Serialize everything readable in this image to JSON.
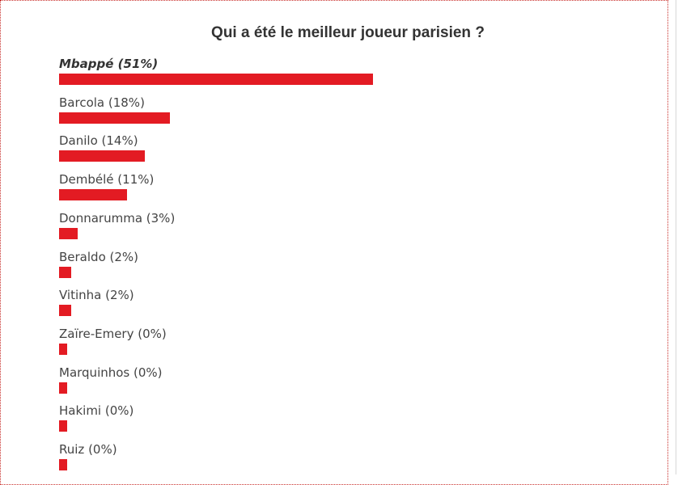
{
  "poll": {
    "title": "Qui a été le meilleur joueur parisien ?",
    "bar_color": "#e31b23"
  },
  "chart_data": {
    "type": "bar",
    "orientation": "horizontal",
    "title": "Qui a été le meilleur joueur parisien ?",
    "categories": [
      "Mbappé",
      "Barcola",
      "Danilo",
      "Dembélé",
      "Donnarumma",
      "Beraldo",
      "Vitinha",
      "Zaïre-Emery",
      "Marquinhos",
      "Hakimi",
      "Ruiz"
    ],
    "values": [
      51,
      18,
      14,
      11,
      3,
      2,
      2,
      0,
      0,
      0,
      0
    ],
    "labels": [
      "Mbappé (51%)",
      "Barcola (18%)",
      "Danilo (14%)",
      "Dembélé (11%)",
      "Donnarumma (3%)",
      "Beraldo (2%)",
      "Vitinha (2%)",
      "Zaïre-Emery (0%)",
      "Marquinhos (0%)",
      "Hakimi (0%)",
      "Ruiz (0%)"
    ],
    "highlighted": "Mbappé",
    "unit": "%",
    "grid": false,
    "legend": "none"
  }
}
